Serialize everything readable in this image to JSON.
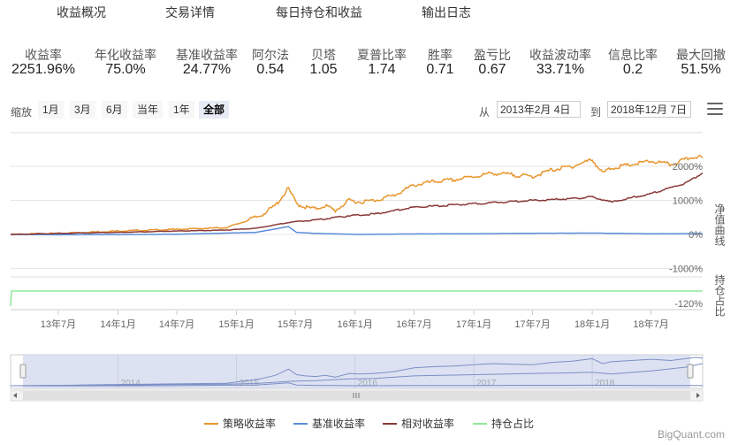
{
  "tabs": [
    "收益概况",
    "交易详情",
    "每日持仓和收益",
    "输出日志"
  ],
  "metrics": [
    {
      "label": "收益率",
      "value": "2251.96%"
    },
    {
      "label": "年化收益率",
      "value": "75.0%"
    },
    {
      "label": "基准收益率",
      "value": "24.77%"
    },
    {
      "label": "阿尔法",
      "value": "0.54"
    },
    {
      "label": "贝塔",
      "value": "1.05"
    },
    {
      "label": "夏普比率",
      "value": "1.74"
    },
    {
      "label": "胜率",
      "value": "0.71"
    },
    {
      "label": "盈亏比",
      "value": "0.67"
    },
    {
      "label": "收益波动率",
      "value": "33.71%"
    },
    {
      "label": "信息比率",
      "value": "0.2"
    },
    {
      "label": "最大回撤",
      "value": "51.5%"
    }
  ],
  "toolbar": {
    "zoom_label": "缩放",
    "zoom_buttons": [
      "1月",
      "3月",
      "6月",
      "当年",
      "1年",
      "全部"
    ],
    "active_zoom": "全部",
    "from_label": "从",
    "from_date": "2013年2月 4日",
    "to_label": "到",
    "to_date": "2018年12月 7日"
  },
  "colors": {
    "strategy": "#e8962e",
    "benchmark": "#5b8ed8",
    "relative": "#8a3a3a",
    "position": "#8fe89a",
    "grid": "#e6e6e6",
    "navigator_fill": "#d5dbef"
  },
  "chart_data": {
    "type": "line",
    "xlabel": "",
    "x_ticks": [
      "13年7月",
      "14年1月",
      "14年7月",
      "15年1月",
      "15年7月",
      "16年1月",
      "16年7月",
      "17年1月",
      "17年7月",
      "18年1月",
      "18年7月"
    ],
    "x_range": [
      "2013-02-04",
      "2018-12-07"
    ],
    "top_panel": {
      "ylabel": "净值曲线",
      "y_ticks": [
        "2000%",
        "1000%",
        "0%",
        "-1000%"
      ],
      "ylim": [
        -1000,
        2000
      ],
      "series": [
        {
          "name": "策略收益率",
          "color": "#e8962e",
          "dates": [
            "2013-02-04",
            "2013-07-01",
            "2014-01-01",
            "2014-07-01",
            "2014-12-01",
            "2015-02-01",
            "2015-03-15",
            "2015-05-01",
            "2015-06-10",
            "2015-07-05",
            "2015-08-01",
            "2015-09-01",
            "2015-10-01",
            "2015-11-01",
            "2015-12-15",
            "2016-01-15",
            "2016-03-01",
            "2016-05-01",
            "2016-07-01",
            "2016-09-01",
            "2016-11-01",
            "2017-01-01",
            "2017-03-01",
            "2017-05-01",
            "2017-07-01",
            "2017-09-01",
            "2017-11-01",
            "2018-01-01",
            "2018-02-01",
            "2018-03-01",
            "2018-05-01",
            "2018-07-01",
            "2018-09-01",
            "2018-10-15",
            "2018-11-15",
            "2018-12-07"
          ],
          "values": [
            0,
            30,
            100,
            150,
            200,
            400,
            550,
            850,
            1350,
            900,
            800,
            750,
            850,
            700,
            1000,
            950,
            1000,
            1150,
            1450,
            1550,
            1600,
            1700,
            1800,
            1750,
            1700,
            1900,
            2000,
            2200,
            1800,
            1950,
            2050,
            2150,
            2050,
            2200,
            2300,
            2250
          ]
        },
        {
          "name": "基准收益率",
          "color": "#5b8ed8",
          "dates": [
            "2013-02-04",
            "2013-07-01",
            "2014-01-01",
            "2014-07-01",
            "2014-12-01",
            "2015-03-01",
            "2015-06-10",
            "2015-07-05",
            "2015-09-01",
            "2016-01-15",
            "2016-07-01",
            "2017-01-01",
            "2017-07-01",
            "2018-01-01",
            "2018-07-01",
            "2018-12-07"
          ],
          "values": [
            0,
            -10,
            -5,
            5,
            40,
            60,
            230,
            60,
            30,
            0,
            15,
            20,
            35,
            40,
            20,
            25
          ]
        },
        {
          "name": "相对收益率",
          "color": "#8a3a3a",
          "dates": [
            "2013-02-04",
            "2013-07-01",
            "2014-01-01",
            "2014-07-01",
            "2014-12-01",
            "2015-03-01",
            "2015-06-10",
            "2015-07-05",
            "2015-09-01",
            "2015-12-15",
            "2016-03-01",
            "2016-07-01",
            "2017-01-01",
            "2017-07-01",
            "2017-11-01",
            "2018-01-01",
            "2018-03-01",
            "2018-07-01",
            "2018-10-15",
            "2018-12-07"
          ],
          "values": [
            0,
            30,
            60,
            100,
            130,
            180,
            350,
            380,
            420,
            550,
            600,
            800,
            900,
            1000,
            1050,
            1100,
            950,
            1200,
            1500,
            1800
          ]
        }
      ]
    },
    "bottom_panel": {
      "ylabel": "持仓占比",
      "y_ticks": [
        "-120%"
      ],
      "series": [
        {
          "name": "持仓占比",
          "color": "#8fe89a",
          "level": 0.3
        }
      ]
    },
    "navigator": {
      "year_labels": [
        "2014",
        "2015",
        "2016",
        "2017",
        "2018"
      ]
    },
    "legend": [
      "策略收益率",
      "基准收益率",
      "相对收益率",
      "持仓占比"
    ]
  },
  "credit": "BigQuant.com"
}
